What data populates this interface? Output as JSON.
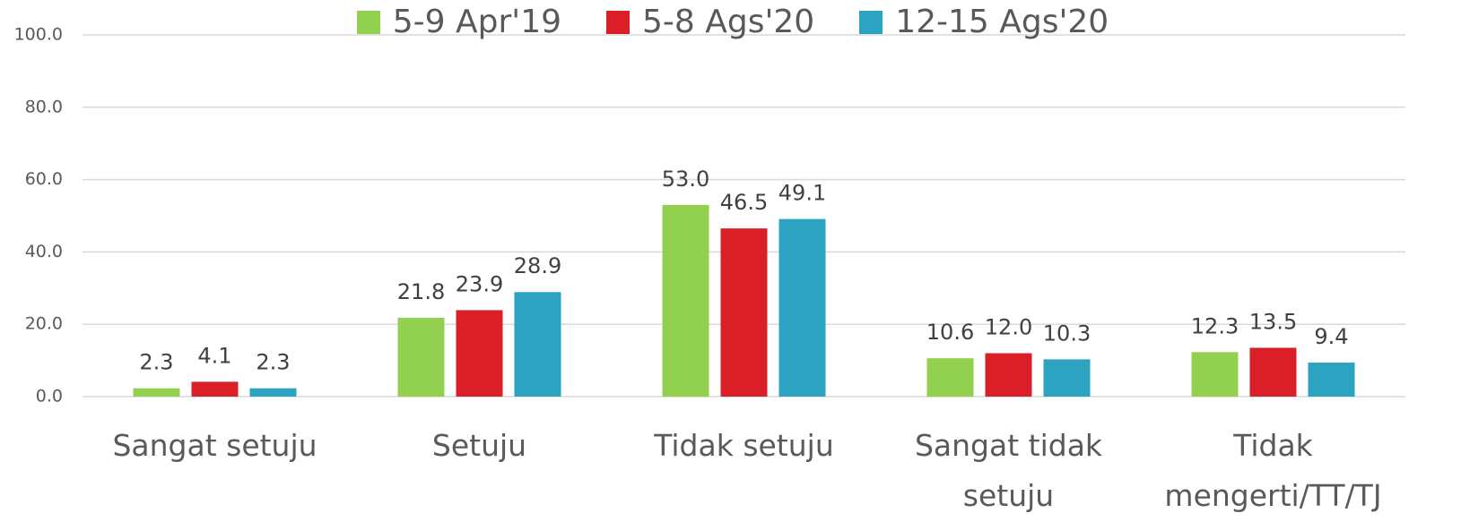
{
  "chart_data": {
    "type": "bar",
    "categories": [
      "Sangat setuju",
      "Setuju",
      "Tidak setuju",
      "Sangat tidak setuju",
      "Tidak mengerti/TT/TJ"
    ],
    "series": [
      {
        "name": "5-9 Apr'19",
        "color": "#92d050",
        "values": [
          2.3,
          21.8,
          53.0,
          10.6,
          12.3
        ],
        "value_labels": [
          "2.3",
          "21.8",
          "53.0",
          "10.6",
          "12.3"
        ]
      },
      {
        "name": "5-8 Ags'20",
        "color": "#da1f28",
        "values": [
          4.1,
          23.9,
          46.5,
          12.0,
          13.5
        ],
        "value_labels": [
          "4.1",
          "23.9",
          "46.5",
          "12.0",
          "13.5"
        ]
      },
      {
        "name": "12-15 Ags'20",
        "color": "#2ca3c0",
        "values": [
          2.3,
          28.9,
          49.1,
          10.3,
          9.4
        ],
        "value_labels": [
          "2.3",
          "28.9",
          "49.1",
          "10.3",
          "9.4"
        ]
      }
    ],
    "ylim": [
      0,
      100
    ],
    "yticks": [
      {
        "value": 0,
        "label": "0.0"
      },
      {
        "value": 20,
        "label": "20.0"
      },
      {
        "value": 40,
        "label": "40.0"
      },
      {
        "value": 60,
        "label": "60.0"
      },
      {
        "value": 80,
        "label": "80.0"
      },
      {
        "value": 100,
        "label": "100.0"
      }
    ],
    "grid": true,
    "legend": "top"
  }
}
